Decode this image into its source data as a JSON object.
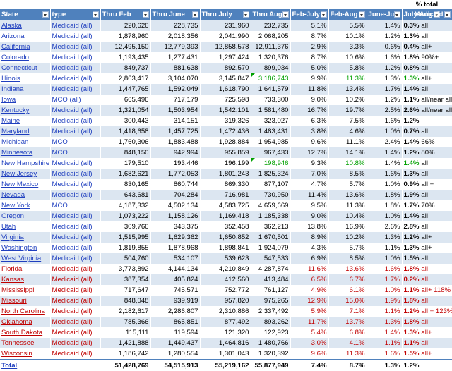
{
  "header_top": {
    "pct_total": "% total"
  },
  "columns": [
    "State",
    "type",
    "Thru Feb",
    "Thru June",
    "Thru July",
    "Thru Aug",
    "Feb-July",
    "Feb-Aug",
    "June-July",
    "July-Aug",
    "Medicaid"
  ],
  "rows": [
    {
      "state": "Alaska",
      "type": "Medicaid (all)",
      "feb": "220,626",
      "jun": "228,735",
      "jul": "231,960",
      "aug": "232,735",
      "febjul": "5.1%",
      "febaug": "5.5%",
      "junjul": "1.4%",
      "julaug": "0.3%",
      "note": "all",
      "red": false
    },
    {
      "state": "Arizona",
      "type": "Medicaid (all)",
      "feb": "1,878,960",
      "jun": "2,018,356",
      "jul": "2,041,990",
      "aug": "2,068,205",
      "febjul": "8.7%",
      "febaug": "10.1%",
      "junjul": "1.2%",
      "julaug": "1.3%",
      "note": "all",
      "red": false
    },
    {
      "state": "California",
      "type": "Medicaid (all)",
      "feb": "12,495,150",
      "jun": "12,779,393",
      "jul": "12,858,578",
      "aug": "12,911,376",
      "febjul": "2.9%",
      "febaug": "3.3%",
      "junjul": "0.6%",
      "julaug": "0.4%",
      "note": "all+",
      "red": false
    },
    {
      "state": "Colorado",
      "type": "Medicaid (all)",
      "feb": "1,193,435",
      "jun": "1,277,431",
      "jul": "1,297,424",
      "aug": "1,320,376",
      "febjul": "8.7%",
      "febaug": "10.6%",
      "junjul": "1.6%",
      "julaug": "1.8%",
      "note": "90%+",
      "red": false
    },
    {
      "state": "Connecticut",
      "type": "Medicaid (all)",
      "feb": "849,737",
      "jun": "881,638",
      "jul": "892,570",
      "aug": "899,034",
      "febjul": "5.0%",
      "febaug": "5.8%",
      "junjul": "1.2%",
      "julaug": "0.8%",
      "note": "all",
      "red": false
    },
    {
      "state": "Illinois",
      "type": "Medicaid (all)",
      "feb": "2,863,417",
      "jun": "3,104,070",
      "jul": "3,145,847",
      "aug": "3,186,743",
      "febjul": "9.9%",
      "febaug": "11.3%",
      "junjul": "1.3%",
      "julaug": "1.3%",
      "note": "all+",
      "red": false,
      "green": true
    },
    {
      "state": "Indiana",
      "type": "Medicaid (all)",
      "feb": "1,447,765",
      "jun": "1,592,049",
      "jul": "1,618,790",
      "aug": "1,641,579",
      "febjul": "11.8%",
      "febaug": "13.4%",
      "junjul": "1.7%",
      "julaug": "1.4%",
      "note": "all",
      "red": false
    },
    {
      "state": "Iowa",
      "type": "MCO (all)",
      "feb": "665,496",
      "jun": "717,179",
      "jul": "725,598",
      "aug": "733,300",
      "febjul": "9.0%",
      "febaug": "10.2%",
      "junjul": "1.2%",
      "julaug": "1.1%",
      "note": "all/near all",
      "red": false
    },
    {
      "state": "Kentucky",
      "type": "Medicaid (all)",
      "feb": "1,321,054",
      "jun": "1,503,954",
      "jul": "1,542,101",
      "aug": "1,581,480",
      "febjul": "16.7%",
      "febaug": "19.7%",
      "junjul": "2.5%",
      "julaug": "2.6%",
      "note": "all/near all",
      "red": false
    },
    {
      "state": "Maine",
      "type": "Medicaid (all)",
      "feb": "300,443",
      "jun": "314,151",
      "jul": "319,326",
      "aug": "323,027",
      "febjul": "6.3%",
      "febaug": "7.5%",
      "junjul": "1.6%",
      "julaug": "1.2%",
      "note": "",
      "red": false
    },
    {
      "state": "Maryland",
      "type": "Medicaid (all)",
      "feb": "1,418,658",
      "jun": "1,457,725",
      "jul": "1,472,436",
      "aug": "1,483,431",
      "febjul": "3.8%",
      "febaug": "4.6%",
      "junjul": "1.0%",
      "julaug": "0.7%",
      "note": "all",
      "red": false
    },
    {
      "state": "Michigan",
      "type": "MCO",
      "feb": "1,760,306",
      "jun": "1,883,488",
      "jul": "1,928,884",
      "aug": "1,954,985",
      "febjul": "9.6%",
      "febaug": "11.1%",
      "junjul": "2.4%",
      "julaug": "1.4%",
      "note": "66%",
      "red": false
    },
    {
      "state": "Minnesota",
      "type": "MCO",
      "feb": "848,150",
      "jun": "942,994",
      "jul": "955,859",
      "aug": "967,433",
      "febjul": "12.7%",
      "febaug": "14.1%",
      "junjul": "1.4%",
      "julaug": "1.2%",
      "note": "80%",
      "red": false
    },
    {
      "state": "New Hampshire",
      "type": "Medicaid (all)",
      "feb": "179,510",
      "jun": "193,446",
      "jul": "196,199",
      "aug": "198,946",
      "febjul": "9.3%",
      "febaug": "10.8%",
      "junjul": "1.4%",
      "julaug": "1.4%",
      "note": "all",
      "red": false,
      "green": true
    },
    {
      "state": "New Jersey",
      "type": "Medicaid (all)",
      "feb": "1,682,621",
      "jun": "1,772,053",
      "jul": "1,801,243",
      "aug": "1,825,324",
      "febjul": "7.0%",
      "febaug": "8.5%",
      "junjul": "1.6%",
      "julaug": "1.3%",
      "note": "all",
      "red": false
    },
    {
      "state": "New Mexico",
      "type": "Medicaid (all)",
      "feb": "830,165",
      "jun": "860,744",
      "jul": "869,330",
      "aug": "877,107",
      "febjul": "4.7%",
      "febaug": "5.7%",
      "junjul": "1.0%",
      "julaug": "0.9%",
      "note": "all +",
      "red": false
    },
    {
      "state": "Nevada",
      "type": "Medicaid (all)",
      "feb": "643,681",
      "jun": "704,284",
      "jul": "716,981",
      "aug": "730,950",
      "febjul": "11.4%",
      "febaug": "13.6%",
      "junjul": "1.8%",
      "julaug": "1.9%",
      "note": "all",
      "red": false
    },
    {
      "state": "New York",
      "type": "MCO",
      "feb": "4,187,332",
      "jun": "4,502,134",
      "jul": "4,583,725",
      "aug": "4,659,669",
      "febjul": "9.5%",
      "febaug": "11.3%",
      "junjul": "1.8%",
      "julaug": "1.7%",
      "note": "70%",
      "red": false
    },
    {
      "state": "Oregon",
      "type": "Medicaid (all)",
      "feb": "1,073,222",
      "jun": "1,158,126",
      "jul": "1,169,418",
      "aug": "1,185,338",
      "febjul": "9.0%",
      "febaug": "10.4%",
      "junjul": "1.0%",
      "julaug": "1.4%",
      "note": "all",
      "red": false
    },
    {
      "state": "Utah",
      "type": "Medicaid (all)",
      "feb": "309,766",
      "jun": "343,375",
      "jul": "352,458",
      "aug": "362,213",
      "febjul": "13.8%",
      "febaug": "16.9%",
      "junjul": "2.6%",
      "julaug": "2.8%",
      "note": "all",
      "red": false
    },
    {
      "state": "Virginia",
      "type": "Medicaid (all)",
      "feb": "1,515,995",
      "jun": "1,629,362",
      "jul": "1,650,852",
      "aug": "1,670,501",
      "febjul": "8.9%",
      "febaug": "10.2%",
      "junjul": "1.3%",
      "julaug": "1.2%",
      "note": "all+",
      "red": false
    },
    {
      "state": "Washington",
      "type": "Medicaid (all)",
      "feb": "1,819,855",
      "jun": "1,878,968",
      "jul": "1,898,841",
      "aug": "1,924,079",
      "febjul": "4.3%",
      "febaug": "5.7%",
      "junjul": "1.1%",
      "julaug": "1.3%",
      "note": "all+",
      "red": false
    },
    {
      "state": "West Virginia",
      "type": "Medicaid (all)",
      "feb": "504,760",
      "jun": "534,107",
      "jul": "539,623",
      "aug": "547,533",
      "febjul": "6.9%",
      "febaug": "8.5%",
      "junjul": "1.0%",
      "julaug": "1.5%",
      "note": "all",
      "red": false
    },
    {
      "state": "Florida",
      "type": "Medicaid (all)",
      "feb": "3,773,892",
      "jun": "4,144,134",
      "jul": "4,210,849",
      "aug": "4,287,874",
      "febjul": "11.6%",
      "febaug": "13.6%",
      "junjul": "1.6%",
      "julaug": "1.8%",
      "note": "all",
      "red": true
    },
    {
      "state": "Kansas",
      "type": "Medicaid (all)",
      "feb": "387,354",
      "jun": "405,824",
      "jul": "412,560",
      "aug": "413,484",
      "febjul": "6.5%",
      "febaug": "6.7%",
      "junjul": "1.7%",
      "julaug": "0.2%",
      "note": "all",
      "red": true
    },
    {
      "state": "Mississippi",
      "type": "Medicaid (all)",
      "feb": "717,647",
      "jun": "745,571",
      "jul": "752,772",
      "aug": "761,127",
      "febjul": "4.9%",
      "febaug": "6.1%",
      "junjul": "1.0%",
      "julaug": "1.1%",
      "note": "all+ 118%",
      "red": true
    },
    {
      "state": "Missouri",
      "type": "Medicaid (all)",
      "feb": "848,048",
      "jun": "939,919",
      "jul": "957,820",
      "aug": "975,265",
      "febjul": "12.9%",
      "febaug": "15.0%",
      "junjul": "1.9%",
      "julaug": "1.8%",
      "note": "all",
      "red": true
    },
    {
      "state": "North Carolina",
      "type": "Medicaid (all)",
      "feb": "2,182,617",
      "jun": "2,286,807",
      "jul": "2,310,886",
      "aug": "2,337,492",
      "febjul": "5.9%",
      "febaug": "7.1%",
      "junjul": "1.1%",
      "julaug": "1.2%",
      "note": "all + 123%",
      "red": true
    },
    {
      "state": "Oklahoma",
      "type": "Medicaid (all)",
      "feb": "785,366",
      "jun": "865,851",
      "jul": "877,492",
      "aug": "893,262",
      "febjul": "11.7%",
      "febaug": "13.7%",
      "junjul": "1.3%",
      "julaug": "1.8%",
      "note": "all",
      "red": true
    },
    {
      "state": "South Dakota",
      "type": "Medicaid (all)",
      "feb": "115,111",
      "jun": "119,594",
      "jul": "121,320",
      "aug": "122,923",
      "febjul": "5.4%",
      "febaug": "6.8%",
      "junjul": "1.4%",
      "julaug": "1.3%",
      "note": "all+",
      "red": true
    },
    {
      "state": "Tennessee",
      "type": "Medicaid (all)",
      "feb": "1,421,888",
      "jun": "1,449,437",
      "jul": "1,464,816",
      "aug": "1,480,766",
      "febjul": "3.0%",
      "febaug": "4.1%",
      "junjul": "1.1%",
      "julaug": "1.1%",
      "note": "all",
      "red": true
    },
    {
      "state": "Wisconsin",
      "type": "Medicaid (all)",
      "feb": "1,186,742",
      "jun": "1,280,554",
      "jul": "1,301,043",
      "aug": "1,320,392",
      "febjul": "9.6%",
      "febaug": "11.3%",
      "junjul": "1.6%",
      "julaug": "1.5%",
      "note": "all+",
      "red": true
    }
  ],
  "total": {
    "state": "Total",
    "feb": "51,428,769",
    "jun": "54,515,913",
    "jul": "55,219,162",
    "aug": "55,877,949",
    "febjul": "7.4%",
    "febaug": "8.7%",
    "junjul": "1.3%",
    "julaug": "1.2%"
  },
  "colors": {
    "header_bg": "#4f81bd",
    "band": "#dce6f1",
    "link_blue": "#1f3fbf",
    "red": "#c00000",
    "green": "#00a000"
  }
}
